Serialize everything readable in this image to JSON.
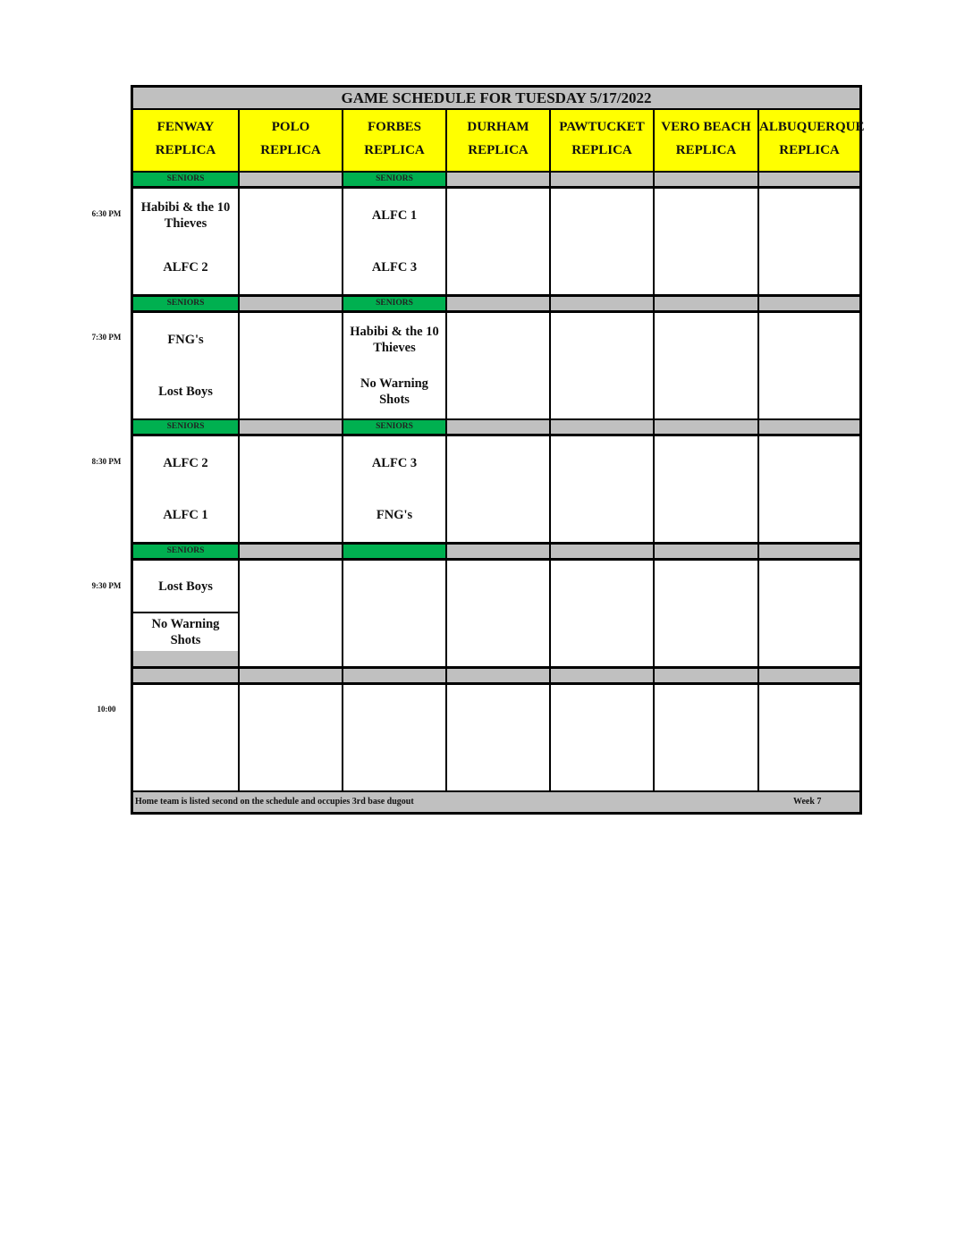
{
  "title": "GAME SCHEDULE FOR TUESDAY 5/17/2022",
  "fields": [
    {
      "name": "FENWAY",
      "sub": "REPLICA"
    },
    {
      "name": "POLO",
      "sub": "REPLICA"
    },
    {
      "name": "FORBES",
      "sub": "REPLICA"
    },
    {
      "name": "DURHAM",
      "sub": "REPLICA"
    },
    {
      "name": "PAWTUCKET",
      "sub": "REPLICA"
    },
    {
      "name": "VERO BEACH",
      "sub": "REPLICA"
    },
    {
      "name": "ALBUQUERQUE",
      "sub": "REPLICA"
    }
  ],
  "slots": [
    {
      "time": "6:30 PM",
      "labels": [
        "SENIORS",
        null,
        "SENIORS",
        null,
        null,
        null,
        null
      ],
      "games": [
        [
          "Habibi & the 10 Thieves",
          "ALFC 2"
        ],
        null,
        [
          "ALFC 1",
          "ALFC 3"
        ],
        null,
        null,
        null,
        null
      ]
    },
    {
      "time": "7:30 PM",
      "labels": [
        "SENIORS",
        null,
        "SENIORS",
        null,
        null,
        null,
        null
      ],
      "games": [
        [
          "FNG's",
          "Lost Boys"
        ],
        null,
        [
          "Habibi & the 10 Thieves",
          "No Warning Shots"
        ],
        null,
        null,
        null,
        null
      ]
    },
    {
      "time": "8:30 PM",
      "labels": [
        "SENIORS",
        null,
        "SENIORS",
        null,
        null,
        null,
        null
      ],
      "games": [
        [
          "ALFC 2",
          "ALFC 1"
        ],
        null,
        [
          "ALFC 3",
          "FNG's"
        ],
        null,
        null,
        null,
        null
      ]
    },
    {
      "time": "9:30 PM",
      "labels": [
        "SENIORS",
        null,
        "",
        null,
        null,
        null,
        null
      ],
      "games": [
        [
          "Lost Boys",
          "No Warning Shots"
        ],
        null,
        null,
        null,
        null,
        null,
        null
      ]
    },
    {
      "time": "10:00",
      "labels": [
        null,
        null,
        null,
        null,
        null,
        null,
        null
      ],
      "games": [
        null,
        null,
        null,
        null,
        null,
        null,
        null
      ]
    }
  ],
  "footer": {
    "note": "Home team is listed second on the schedule and occupies 3rd base dugout",
    "week": "Week 7"
  },
  "colors": {
    "header": "#ffff00",
    "seniors": "#00b050",
    "gray": "#c0c0c0"
  }
}
